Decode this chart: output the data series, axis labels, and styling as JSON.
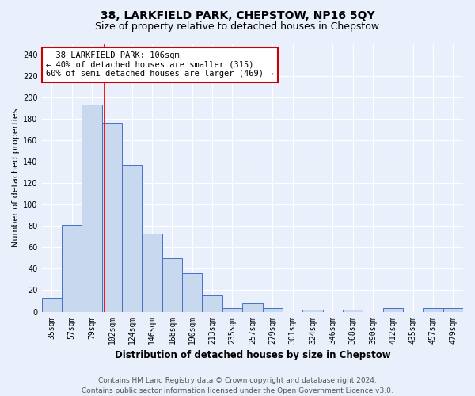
{
  "title": "38, LARKFIELD PARK, CHEPSTOW, NP16 5QY",
  "subtitle": "Size of property relative to detached houses in Chepstow",
  "xlabel": "Distribution of detached houses by size in Chepstow",
  "ylabel": "Number of detached properties",
  "categories": [
    "35sqm",
    "57sqm",
    "79sqm",
    "102sqm",
    "124sqm",
    "146sqm",
    "168sqm",
    "190sqm",
    "213sqm",
    "235sqm",
    "257sqm",
    "279sqm",
    "301sqm",
    "324sqm",
    "346sqm",
    "368sqm",
    "390sqm",
    "412sqm",
    "435sqm",
    "457sqm",
    "479sqm"
  ],
  "values": [
    13,
    81,
    193,
    176,
    137,
    73,
    50,
    36,
    15,
    3,
    8,
    3,
    0,
    2,
    0,
    2,
    0,
    3,
    0,
    3,
    3
  ],
  "bar_color": "#c8d8ef",
  "bar_edge_color": "#4472c4",
  "bar_width": 1.0,
  "ylim": [
    0,
    250
  ],
  "yticks": [
    0,
    20,
    40,
    60,
    80,
    100,
    120,
    140,
    160,
    180,
    200,
    220,
    240
  ],
  "red_line_x": 2.62,
  "annotation_text": "  38 LARKFIELD PARK: 106sqm  \n← 40% of detached houses are smaller (315)\n60% of semi-detached houses are larger (469) →",
  "annotation_box_color": "#ffffff",
  "annotation_box_edge_color": "#cc0000",
  "footer_line1": "Contains HM Land Registry data © Crown copyright and database right 2024.",
  "footer_line2": "Contains public sector information licensed under the Open Government Licence v3.0.",
  "bg_color": "#eaf0fb",
  "plot_bg_color": "#eaf0fb",
  "grid_color": "#ffffff",
  "title_fontsize": 10,
  "subtitle_fontsize": 9,
  "xlabel_fontsize": 8.5,
  "ylabel_fontsize": 8,
  "tick_fontsize": 7,
  "annotation_fontsize": 7.5,
  "footer_fontsize": 6.5
}
